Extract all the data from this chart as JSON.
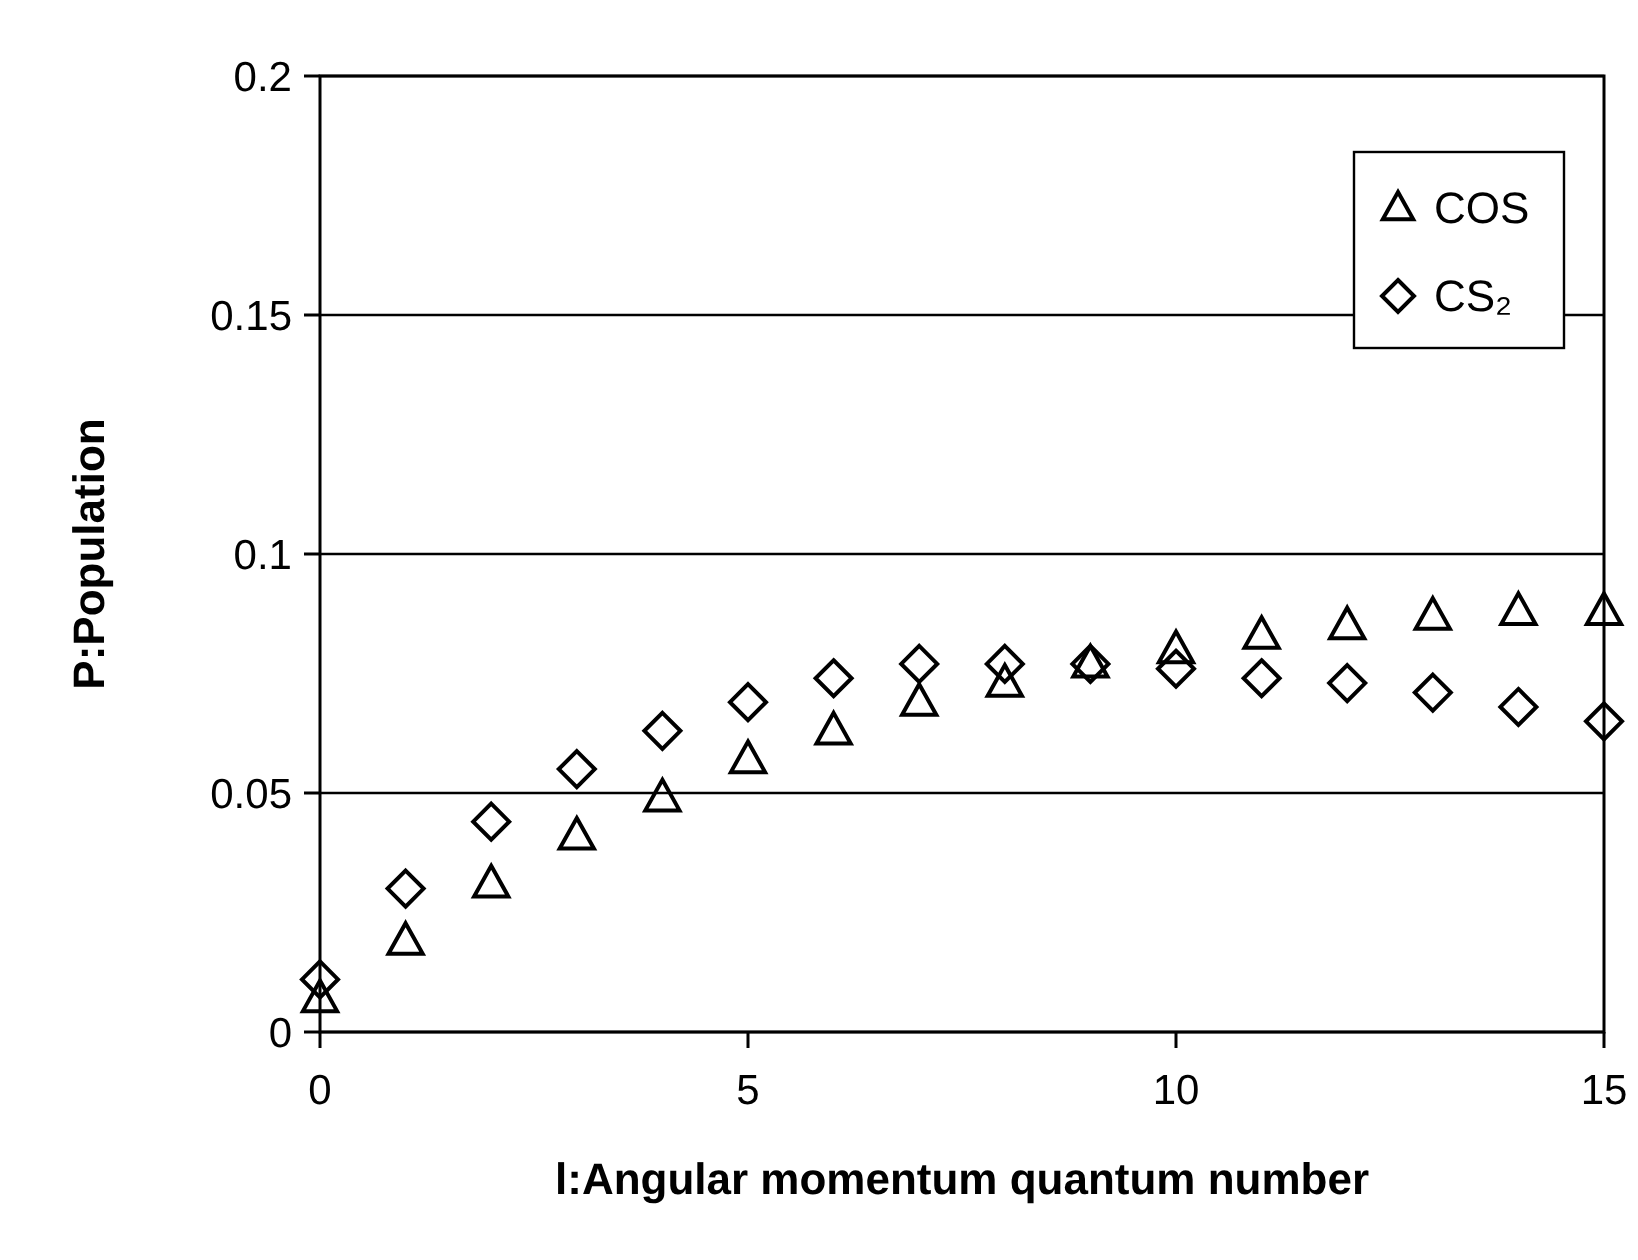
{
  "chart_data": {
    "type": "scatter",
    "xlabel": "l:Angular momentum quantum number",
    "ylabel": "P:Population",
    "x": [
      0,
      1,
      2,
      3,
      4,
      5,
      6,
      7,
      8,
      9,
      10,
      11,
      12,
      13,
      14,
      15
    ],
    "series": [
      {
        "name": "COS",
        "color": "#000000",
        "marker": "triangle",
        "values": [
          0.007,
          0.019,
          0.031,
          0.041,
          0.049,
          0.057,
          0.063,
          0.069,
          0.073,
          0.077,
          0.08,
          0.083,
          0.085,
          0.087,
          0.088,
          0.088
        ]
      },
      {
        "name": "CS₂",
        "color": "#000000",
        "marker": "diamond",
        "values": [
          0.011,
          0.03,
          0.044,
          0.055,
          0.063,
          0.069,
          0.074,
          0.077,
          0.077,
          0.077,
          0.076,
          0.074,
          0.073,
          0.071,
          0.068,
          0.065
        ]
      }
    ],
    "xlim": [
      0,
      15
    ],
    "xticks": [
      0,
      5,
      10,
      15
    ],
    "ylim": [
      0,
      0.2
    ],
    "yticks": [
      0,
      0.05,
      0.1,
      0.15,
      0.2
    ],
    "grid": "y",
    "legend": "top right"
  }
}
